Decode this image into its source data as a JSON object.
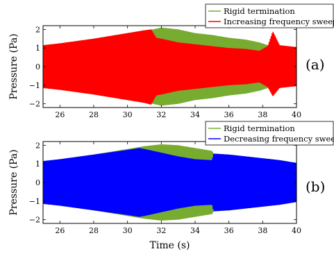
{
  "chart_data": [
    {
      "type": "area",
      "panel_label": "(a)",
      "ylabel": "Pressure (Pa)",
      "xlabel": "",
      "xlim": [
        25,
        40
      ],
      "ylim": [
        -2.2,
        2.2
      ],
      "xticks": [
        26,
        28,
        30,
        32,
        34,
        36,
        38,
        40
      ],
      "yticks": [
        -2,
        -1,
        0,
        1,
        2
      ],
      "legend_position": "top-right",
      "series": [
        {
          "name": "Rigid termination",
          "color": "#77ac30",
          "x": [
            25,
            26,
            28,
            30,
            31,
            31.5,
            32,
            33,
            34,
            35,
            36,
            37,
            37.8,
            38.3,
            38.6,
            39,
            40
          ],
          "upper": [
            1.15,
            1.25,
            1.5,
            1.8,
            1.95,
            2.0,
            2.1,
            2.0,
            1.8,
            1.7,
            1.55,
            1.45,
            1.3,
            1.15,
            1.1,
            1.1,
            1.05
          ],
          "lower": [
            -1.15,
            -1.25,
            -1.5,
            -1.8,
            -1.95,
            -2.0,
            -2.1,
            -2.0,
            -1.8,
            -1.7,
            -1.55,
            -1.45,
            -1.3,
            -1.15,
            -1.1,
            -1.1,
            -1.05
          ]
        },
        {
          "name": "Increasing frequency sweep",
          "color": "#ff0000",
          "x": [
            25,
            26,
            28,
            30,
            31,
            31.4,
            31.7,
            32,
            33,
            34,
            35,
            36,
            37,
            37.8,
            38.3,
            38.6,
            39,
            40
          ],
          "upper": [
            1.15,
            1.25,
            1.5,
            1.8,
            1.95,
            2.0,
            1.55,
            1.5,
            1.3,
            1.2,
            1.1,
            1.0,
            0.95,
            0.85,
            1.1,
            1.9,
            1.15,
            1.05
          ],
          "lower": [
            -1.15,
            -1.25,
            -1.5,
            -1.8,
            -1.95,
            -2.05,
            -1.55,
            -1.5,
            -1.3,
            -1.2,
            -1.1,
            -1.0,
            -0.95,
            -0.85,
            -1.1,
            -1.6,
            -1.15,
            -1.05
          ]
        }
      ]
    },
    {
      "type": "area",
      "panel_label": "(b)",
      "ylabel": "Pressure (Pa)",
      "xlabel": "Time (s)",
      "xlim": [
        25,
        40
      ],
      "ylim": [
        -2.2,
        2.2
      ],
      "xticks": [
        26,
        28,
        30,
        32,
        34,
        36,
        38,
        40
      ],
      "yticks": [
        -2,
        -1,
        0,
        1,
        2
      ],
      "legend_position": "top-right",
      "series": [
        {
          "name": "Rigid termination",
          "color": "#77ac30",
          "x": [
            25,
            26,
            28,
            30,
            31,
            32,
            33,
            34,
            35,
            35.1,
            36,
            37,
            38,
            39,
            40
          ],
          "upper": [
            1.15,
            1.25,
            1.5,
            1.8,
            1.95,
            2.05,
            2.0,
            1.85,
            1.7,
            1.55,
            1.5,
            1.4,
            1.3,
            1.2,
            1.05
          ],
          "lower": [
            -1.15,
            -1.25,
            -1.5,
            -1.8,
            -1.95,
            -2.05,
            -2.0,
            -1.85,
            -1.7,
            -1.55,
            -1.5,
            -1.4,
            -1.3,
            -1.2,
            -1.05
          ]
        },
        {
          "name": "Decreasing frequency sweep",
          "color": "#0000ff",
          "x": [
            25,
            26,
            28,
            30,
            30.7,
            31,
            32,
            33,
            34,
            35,
            35.1,
            36,
            37,
            38,
            39,
            40
          ],
          "upper": [
            1.15,
            1.25,
            1.5,
            1.75,
            1.85,
            1.8,
            1.6,
            1.4,
            1.25,
            1.2,
            1.55,
            1.5,
            1.4,
            1.3,
            1.2,
            1.05
          ],
          "lower": [
            -1.15,
            -1.25,
            -1.5,
            -1.75,
            -1.85,
            -1.8,
            -1.6,
            -1.4,
            -1.25,
            -1.2,
            -1.55,
            -1.5,
            -1.4,
            -1.3,
            -1.2,
            -1.05
          ]
        }
      ]
    }
  ]
}
